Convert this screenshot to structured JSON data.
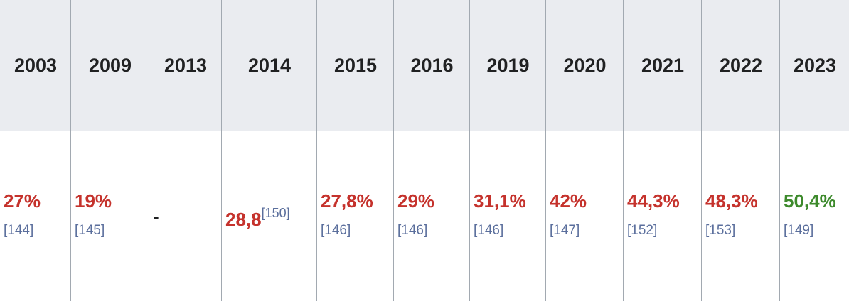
{
  "table": {
    "headers": [
      "2003",
      "2009",
      "2013",
      "2014",
      "2015",
      "2016",
      "2019",
      "2020",
      "2021",
      "2022",
      "2023"
    ],
    "rows": [
      [
        {
          "value": "27%",
          "ref": "[144]",
          "color": "#c5322c"
        },
        {
          "value": "19%",
          "ref": "[145]",
          "color": "#c5322c"
        },
        {
          "value": "-",
          "color": "#202122"
        },
        {
          "value": "28,8",
          "sup": "[150]",
          "color": "#c5322c"
        },
        {
          "value": "27,8%",
          "ref": "[146]",
          "color": "#c5322c"
        },
        {
          "value": "29%",
          "ref": "[146]",
          "color": "#c5322c"
        },
        {
          "value": "31,1%",
          "ref": "[146]",
          "color": "#c5322c"
        },
        {
          "value": "42%",
          "ref": "[147]",
          "color": "#c5322c"
        },
        {
          "value": "44,3%",
          "ref": "[152]",
          "color": "#c5322c"
        },
        {
          "value": "48,3%",
          "ref": "[153]",
          "color": "#c5322c"
        },
        {
          "value": "50,4%",
          "ref": "[149]",
          "color": "#3d8a2c"
        }
      ]
    ]
  }
}
